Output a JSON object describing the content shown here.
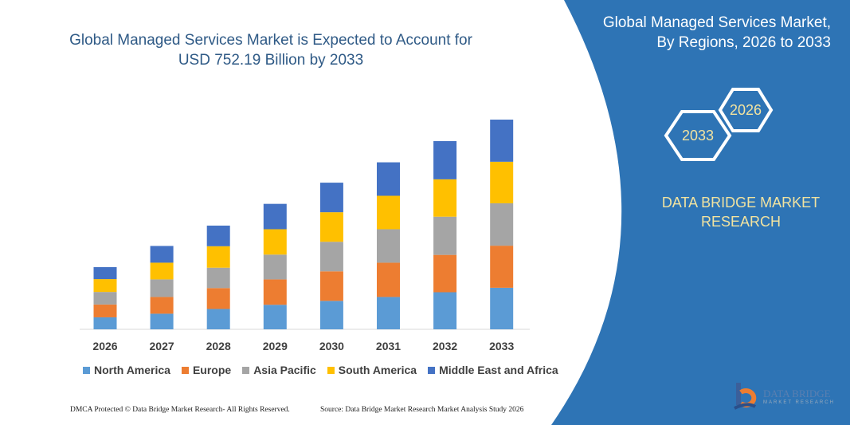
{
  "header": {
    "title": "Global Managed Services Market is Expected to Account for USD 752.19 Billion by 2033"
  },
  "side_panel": {
    "title_line1": "Global Managed Services Market,",
    "title_line2": "By Regions, 2026 to 2033",
    "hex_left": "2033",
    "hex_right": "2026",
    "brand_line1": "DATA BRIDGE MARKET",
    "brand_line2": "RESEARCH",
    "logo_text": "DATA BRIDGE",
    "logo_sub": "MARKET RESEARCH"
  },
  "footer": {
    "copyright": "DMCA Protected © Data Bridge Market Research- All Rights Reserved.",
    "source": "Source: Data Bridge Market Research Market Analysis Study 2026"
  },
  "colors": {
    "panel": "#2e74b5",
    "accent_text": "#f2e3a0"
  },
  "chart_data": {
    "type": "bar",
    "stacked": true,
    "title": "Global Managed Services Market is Expected to Account for USD 752.19 Billion by 2033",
    "categories": [
      "2026",
      "2027",
      "2028",
      "2029",
      "2030",
      "2031",
      "2032",
      "2033"
    ],
    "series": [
      {
        "name": "North America",
        "color": "#5b9bd5",
        "values": [
          43,
          56,
          73,
          88,
          102,
          116,
          133,
          149
        ]
      },
      {
        "name": "Europe",
        "color": "#ed7d31",
        "values": [
          46,
          60,
          75,
          91,
          106,
          123,
          134,
          151
        ]
      },
      {
        "name": "Asia Pacific",
        "color": "#a5a5a5",
        "values": [
          45,
          63,
          73,
          89,
          106,
          120,
          137,
          152
        ]
      },
      {
        "name": "South America",
        "color": "#ffc000",
        "values": [
          46,
          60,
          77,
          91,
          106,
          120,
          134,
          149
        ]
      },
      {
        "name": "Middle East and Africa",
        "color": "#4472c4",
        "values": [
          43,
          60,
          74,
          91,
          106,
          120,
          137,
          151.19
        ]
      }
    ],
    "ylim": [
      0,
      752.19
    ],
    "grid": false,
    "legend": "bottom"
  }
}
